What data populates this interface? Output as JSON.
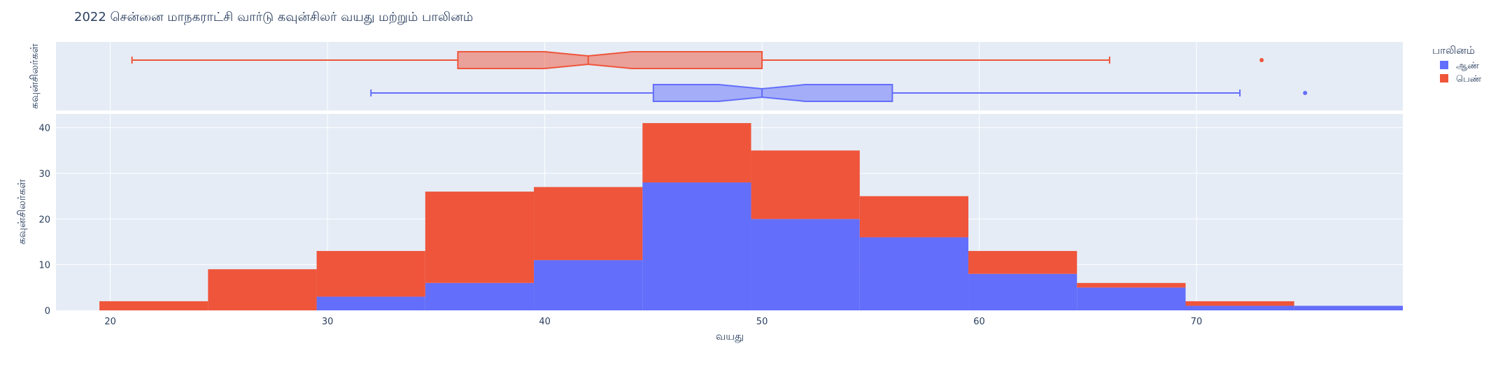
{
  "chart_data": {
    "type": "bar",
    "title": "2022 சென்னை மாநகராட்சி வார்டு கவுன்சிலர் வயது மற்றும் பாலினம்",
    "xlabel": "வயது",
    "ylabel": "கவுன்சிலர்கள்",
    "marginal_ylabel": "கவுன்சிலர்கள்",
    "x_range": [
      17.5,
      79.5
    ],
    "x_ticks": [
      20,
      30,
      40,
      50,
      60,
      70
    ],
    "y_range": [
      0,
      43
    ],
    "y_ticks": [
      0,
      10,
      20,
      30,
      40
    ],
    "barmode": "stack",
    "grid": true,
    "legend": {
      "title": "பாலினம்",
      "placement": "top-right",
      "items": [
        {
          "label": "ஆண்",
          "color": "#636efa"
        },
        {
          "label": "பெண்",
          "color": "#ef553b"
        }
      ]
    },
    "histogram": {
      "bins": [
        [
          19.5,
          24.5
        ],
        [
          24.5,
          29.5
        ],
        [
          29.5,
          34.5
        ],
        [
          34.5,
          39.5
        ],
        [
          39.5,
          44.5
        ],
        [
          44.5,
          49.5
        ],
        [
          49.5,
          54.5
        ],
        [
          54.5,
          59.5
        ],
        [
          59.5,
          64.5
        ],
        [
          64.5,
          69.5
        ],
        [
          69.5,
          74.5
        ],
        [
          74.5,
          79.5
        ]
      ],
      "series": [
        {
          "name": "ஆண்",
          "color": "#636efa",
          "values": [
            0,
            0,
            3,
            6,
            11,
            28,
            20,
            16,
            8,
            5,
            1,
            1
          ]
        },
        {
          "name": "பெண்",
          "color": "#ef553b",
          "values": [
            2,
            9,
            10,
            20,
            16,
            13,
            15,
            9,
            5,
            1,
            1,
            0
          ]
        }
      ]
    },
    "box": {
      "type": "box",
      "notched": true,
      "series": [
        {
          "name": "பெண்",
          "color": "#ef553b",
          "min": 21,
          "q1": 36,
          "median": 42,
          "q3": 50,
          "max": 66,
          "notch_low": 40,
          "notch_high": 44,
          "outliers": [
            73
          ]
        },
        {
          "name": "ஆண்",
          "color": "#636efa",
          "min": 32,
          "q1": 45,
          "median": 50,
          "q3": 56,
          "max": 72,
          "notch_low": 48,
          "notch_high": 52,
          "outliers": [
            75
          ]
        }
      ]
    }
  }
}
